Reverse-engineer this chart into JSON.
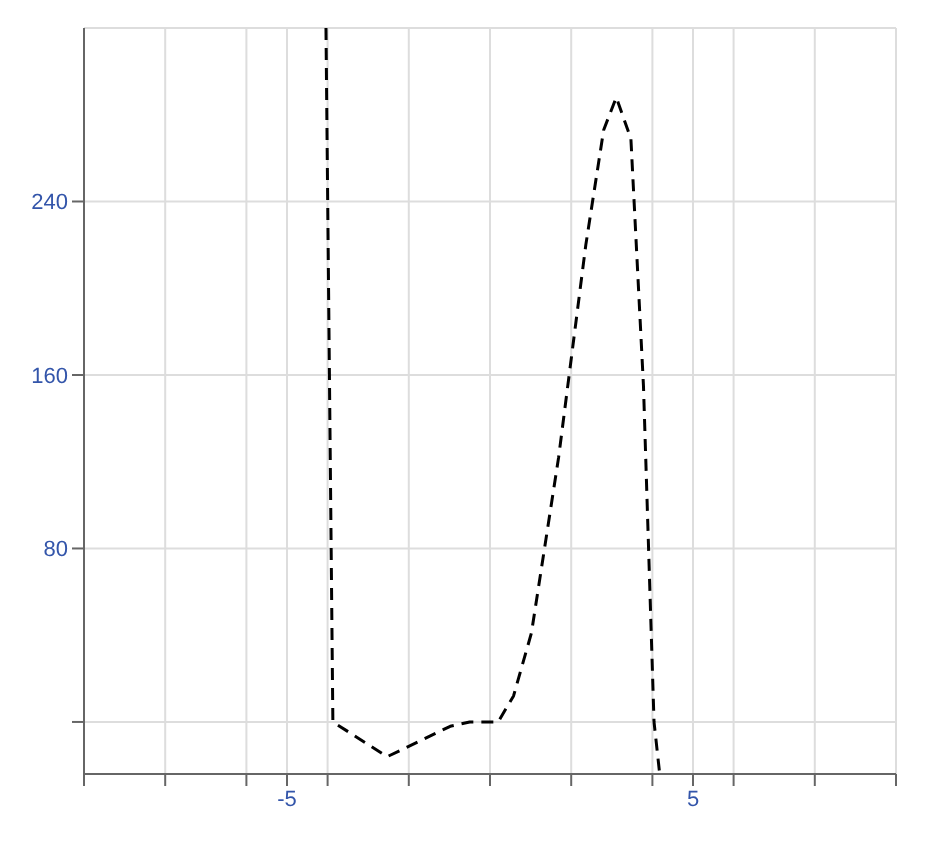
{
  "chart_data": {
    "type": "line",
    "x": [
      -4.04,
      -3.87,
      -2.53,
      -1.64,
      -0.98,
      -0.5,
      0.2,
      0.58,
      1.02,
      1.69,
      2.36,
      2.8,
      3.11,
      3.47,
      3.78,
      4.04,
      4.18
    ],
    "series": [
      {
        "color": "#000000",
        "values": [
          320,
          0,
          -16,
          -8,
          -2,
          0,
          0,
          12,
          41,
          122,
          220,
          273,
          288,
          269,
          155,
          0,
          -24
        ]
      }
    ],
    "xlim": [
      -10,
      10
    ],
    "xticks": [
      {
        "value": -10,
        "label": null
      },
      {
        "value": -8,
        "label": null
      },
      {
        "value": -6,
        "label": null
      },
      {
        "value": -5,
        "label": "-5"
      },
      {
        "value": -4,
        "label": null
      },
      {
        "value": -2,
        "label": null
      },
      {
        "value": 0,
        "label": null
      },
      {
        "value": 2,
        "label": null
      },
      {
        "value": 4,
        "label": null
      },
      {
        "value": 5,
        "label": "5"
      },
      {
        "value": 6,
        "label": null
      },
      {
        "value": 8,
        "label": null
      },
      {
        "value": 10,
        "label": null
      }
    ],
    "ylim": [
      -24,
      320
    ],
    "yticks": [
      {
        "value": 0,
        "label": null
      },
      80,
      160,
      240
    ],
    "grid": true,
    "marker": "none",
    "line_style": "dashed"
  }
}
